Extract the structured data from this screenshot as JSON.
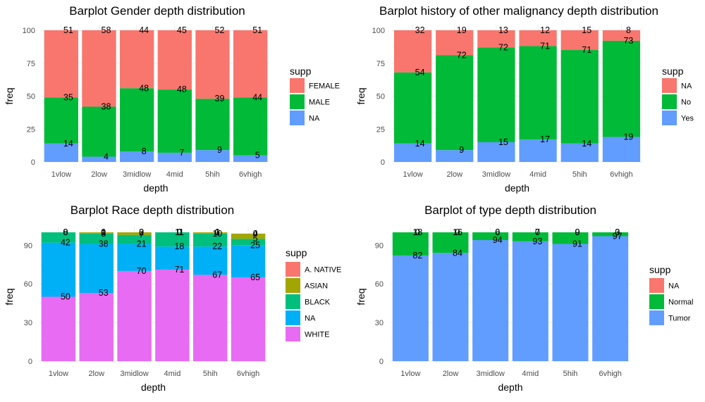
{
  "chart_data": [
    {
      "type": "bar",
      "stacked": true,
      "title": "Barplot Gender depth distribution",
      "xlabel": "depth",
      "ylabel": "freq",
      "ylim": [
        0,
        100
      ],
      "yticks": [
        0,
        25,
        50,
        75,
        100
      ],
      "grid": true,
      "legend_title": "supp",
      "legend_position": "right",
      "categories": [
        "1vlow",
        "2low",
        "3midlow",
        "4mid",
        "5hih",
        "6vhigh"
      ],
      "series": [
        {
          "name": "NA",
          "color": "#619CFF",
          "values": [
            14,
            4,
            8,
            7,
            9,
            5
          ],
          "labels": [
            "14",
            "4",
            "8",
            "7",
            "9",
            "5"
          ]
        },
        {
          "name": "MALE",
          "color": "#00BA38",
          "values": [
            35,
            38,
            48,
            48,
            39,
            44
          ],
          "labels": [
            "35",
            "38",
            "48",
            "48",
            "39",
            "44"
          ]
        },
        {
          "name": "FEMALE",
          "color": "#F8766D",
          "values": [
            51,
            58,
            44,
            45,
            52,
            51
          ],
          "labels": [
            "51",
            "58",
            "44",
            "45",
            "52",
            "51"
          ]
        }
      ],
      "legend": [
        {
          "name": "FEMALE",
          "color": "#F8766D"
        },
        {
          "name": "MALE",
          "color": "#00BA38"
        },
        {
          "name": "NA",
          "color": "#619CFF"
        }
      ]
    },
    {
      "type": "bar",
      "stacked": true,
      "title": "Barplot history of other malignancy depth distribution",
      "xlabel": "depth",
      "ylabel": "freq",
      "ylim": [
        0,
        100
      ],
      "yticks": [
        0,
        25,
        50,
        75,
        100
      ],
      "grid": true,
      "legend_title": "supp",
      "legend_position": "right",
      "categories": [
        "1vlow",
        "2low",
        "3midlow",
        "4mid",
        "5hih",
        "6vhigh"
      ],
      "series": [
        {
          "name": "Yes",
          "color": "#619CFF",
          "values": [
            14,
            9,
            15,
            17,
            14,
            19
          ],
          "labels": [
            "14",
            "9",
            "15",
            "17",
            "14",
            "19"
          ]
        },
        {
          "name": "No",
          "color": "#00BA38",
          "values": [
            54,
            72,
            72,
            71,
            71,
            73
          ],
          "labels": [
            "54",
            "72",
            "72",
            "71",
            "71",
            "73"
          ]
        },
        {
          "name": "NA",
          "color": "#F8766D",
          "values": [
            32,
            19,
            13,
            12,
            15,
            8
          ],
          "labels": [
            "32",
            "19",
            "13",
            "12",
            "15",
            "8"
          ]
        }
      ],
      "legend": [
        {
          "name": "NA",
          "color": "#F8766D"
        },
        {
          "name": "No",
          "color": "#00BA38"
        },
        {
          "name": "Yes",
          "color": "#619CFF"
        }
      ]
    },
    {
      "type": "bar",
      "stacked": true,
      "title": "Barplot Race depth distribution",
      "xlabel": "depth",
      "ylabel": "freq",
      "ylim": [
        0,
        100
      ],
      "yticks": [
        0,
        30,
        60,
        90
      ],
      "grid": true,
      "legend_title": "supp",
      "legend_position": "right",
      "categories": [
        "1vlow",
        "2low",
        "3midlow",
        "4mid",
        "5hih",
        "6vhigh"
      ],
      "series": [
        {
          "name": "WHITE",
          "color": "#E76BF3",
          "values": [
            50,
            53,
            70,
            71,
            67,
            65
          ],
          "labels": [
            "50",
            "53",
            "70",
            "71",
            "67",
            "65"
          ]
        },
        {
          "name": "NA",
          "color": "#00B0F6",
          "values": [
            42,
            38,
            21,
            18,
            22,
            25
          ],
          "labels": [
            "42",
            "38",
            "21",
            "18",
            "22",
            "25"
          ]
        },
        {
          "name": "BLACK",
          "color": "#00BF7D",
          "values": [
            8,
            8,
            7,
            11,
            10,
            5
          ],
          "labels": [
            "8",
            "8",
            "7",
            "11",
            "10",
            "5"
          ]
        },
        {
          "name": "ASIAN",
          "color": "#A3A500",
          "values": [
            0,
            1,
            2,
            0,
            1,
            4
          ],
          "labels": [
            "0",
            "1",
            "2",
            "0",
            "1",
            "4"
          ]
        },
        {
          "name": "A. NATIVE",
          "color": "#F8766D",
          "values": [
            0,
            0,
            0,
            0,
            0,
            0
          ],
          "labels": [
            "0",
            "0",
            "0",
            "0",
            "0",
            "0"
          ]
        }
      ],
      "legend": [
        {
          "name": "A. NATIVE",
          "color": "#F8766D"
        },
        {
          "name": "ASIAN",
          "color": "#A3A500"
        },
        {
          "name": "BLACK",
          "color": "#00BF7D"
        },
        {
          "name": "NA",
          "color": "#00B0F6"
        },
        {
          "name": "WHITE",
          "color": "#E76BF3"
        }
      ]
    },
    {
      "type": "bar",
      "stacked": true,
      "title": "Barplot of type depth distribution",
      "xlabel": "depth",
      "ylabel": "freq",
      "ylim": [
        0,
        100
      ],
      "yticks": [
        0,
        30,
        60,
        90
      ],
      "grid": true,
      "legend_title": "supp",
      "legend_position": "right",
      "categories": [
        "1vlow",
        "2low",
        "3midlow",
        "4mid",
        "5hih",
        "6vhigh"
      ],
      "series": [
        {
          "name": "Tumor",
          "color": "#619CFF",
          "values": [
            82,
            84,
            94,
            93,
            91,
            97
          ],
          "labels": [
            "82",
            "84",
            "94",
            "93",
            "91",
            "97"
          ]
        },
        {
          "name": "Normal",
          "color": "#00BA38",
          "values": [
            18,
            16,
            6,
            7,
            9,
            3
          ],
          "labels": [
            "18",
            "16",
            "6",
            "7",
            "9",
            "3"
          ]
        },
        {
          "name": "NA",
          "color": "#F8766D",
          "values": [
            0,
            0,
            0,
            0,
            0,
            0
          ],
          "labels": [
            "0",
            "0",
            "0",
            "0",
            "0",
            "0"
          ]
        }
      ],
      "legend": [
        {
          "name": "NA",
          "color": "#F8766D"
        },
        {
          "name": "Normal",
          "color": "#00BA38"
        },
        {
          "name": "Tumor",
          "color": "#619CFF"
        }
      ]
    }
  ]
}
